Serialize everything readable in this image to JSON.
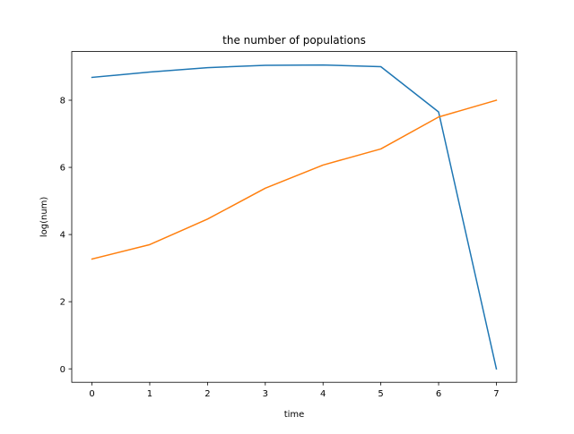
{
  "chart_data": {
    "type": "line",
    "title": "the number of populations",
    "xlabel": "time",
    "ylabel": "log(num)",
    "x": [
      0,
      1,
      2,
      3,
      4,
      5,
      6,
      7
    ],
    "xlim": [
      -0.35,
      7.35
    ],
    "ylim": [
      -0.4,
      9.45
    ],
    "xticks": [
      0,
      1,
      2,
      3,
      4,
      5,
      6,
      7
    ],
    "yticks": [
      0,
      2,
      4,
      6,
      8
    ],
    "grid": false,
    "series": [
      {
        "color": "#1f77b4",
        "values": [
          8.68,
          8.84,
          8.97,
          9.04,
          9.05,
          9.0,
          7.65,
          0.0
        ]
      },
      {
        "color": "#ff7f0e",
        "values": [
          3.27,
          3.7,
          4.46,
          5.38,
          6.07,
          6.55,
          7.5,
          8.0
        ]
      }
    ]
  }
}
